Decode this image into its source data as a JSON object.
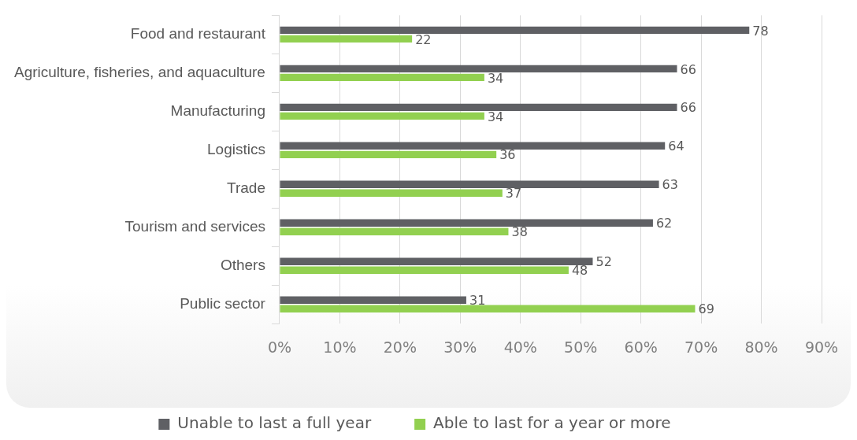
{
  "chart_data": {
    "type": "bar",
    "orientation": "horizontal",
    "categories": [
      "Food and restaurant",
      "Agriculture, fisheries, and aquaculture",
      "Manufacturing",
      "Logistics",
      "Trade",
      "Tourism and services",
      "Others",
      "Public sector"
    ],
    "series": [
      {
        "name": "Unable to last a full year",
        "color": "#5f6064",
        "values": [
          78,
          66,
          66,
          64,
          63,
          62,
          52,
          31
        ]
      },
      {
        "name": "Able to last for a year or more",
        "color": "#92d050",
        "values": [
          22,
          34,
          34,
          36,
          37,
          38,
          48,
          69
        ]
      }
    ],
    "xlim": [
      0,
      90
    ],
    "xticks": [
      {
        "value": 0,
        "label": "0%"
      },
      {
        "value": 10,
        "label": "10%"
      },
      {
        "value": 20,
        "label": "20%"
      },
      {
        "value": 30,
        "label": "30%"
      },
      {
        "value": 40,
        "label": "40%"
      },
      {
        "value": 50,
        "label": "50%"
      },
      {
        "value": 60,
        "label": "60%"
      },
      {
        "value": 70,
        "label": "70%"
      },
      {
        "value": 80,
        "label": "80%"
      },
      {
        "value": 90,
        "label": "90%"
      }
    ],
    "grid": "x",
    "data_labels": true,
    "legend": "bottom"
  }
}
